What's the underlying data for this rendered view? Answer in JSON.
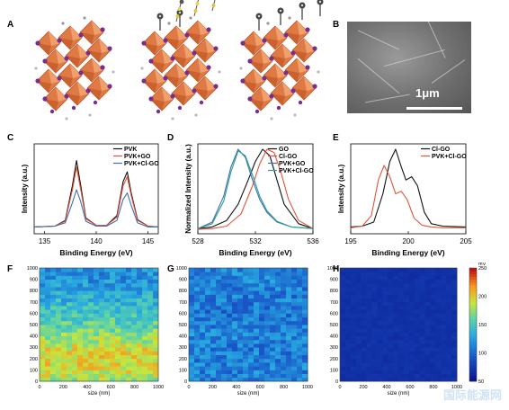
{
  "panels": {
    "a": "A",
    "b": "B",
    "c": "C",
    "d": "D",
    "e": "E",
    "f": "F",
    "g": "G",
    "h": "H"
  },
  "sem": {
    "scale_label": "1μm"
  },
  "watermark": {
    "text": "国际能源网"
  },
  "chart_data": [
    {
      "type": "line",
      "panel": "C",
      "xlabel": "Binding Energy (eV)",
      "ylabel": "Intensity (a.u.)",
      "xlim": [
        134,
        146
      ],
      "xticks": [
        135,
        140,
        145
      ],
      "series": [
        {
          "name": "PVK",
          "color": "#111111",
          "x": [
            134,
            136,
            137,
            137.7,
            138.1,
            138.5,
            139,
            140,
            141,
            142,
            142.6,
            143,
            143.4,
            144,
            145,
            146
          ],
          "values": [
            0.04,
            0.05,
            0.12,
            0.55,
            0.86,
            0.55,
            0.15,
            0.06,
            0.06,
            0.18,
            0.6,
            0.72,
            0.45,
            0.13,
            0.05,
            0.04
          ]
        },
        {
          "name": "PVK+GO",
          "color": "#e0533b",
          "x": [
            134,
            136,
            137,
            137.7,
            138.1,
            138.5,
            139,
            140,
            141,
            142,
            142.6,
            143,
            143.4,
            144,
            145,
            146
          ],
          "values": [
            0.04,
            0.05,
            0.11,
            0.5,
            0.78,
            0.5,
            0.14,
            0.06,
            0.06,
            0.16,
            0.55,
            0.66,
            0.42,
            0.12,
            0.05,
            0.04
          ]
        },
        {
          "name": "PVK+Cl-GO",
          "color": "#3b6fb0",
          "x": [
            134,
            136,
            137,
            137.7,
            138.1,
            138.5,
            139,
            140,
            141,
            142,
            142.6,
            143,
            143.4,
            144,
            145,
            146
          ],
          "values": [
            0.04,
            0.05,
            0.09,
            0.34,
            0.5,
            0.35,
            0.11,
            0.05,
            0.05,
            0.12,
            0.38,
            0.46,
            0.3,
            0.09,
            0.04,
            0.04
          ]
        }
      ]
    },
    {
      "type": "line",
      "panel": "D",
      "xlabel": "Binding Energy (eV)",
      "ylabel": "Normalized Intensity (a.u.)",
      "xlim": [
        528,
        536
      ],
      "xticks": [
        528,
        532,
        536
      ],
      "series": [
        {
          "name": "GO",
          "color": "#111111",
          "x": [
            528,
            529,
            530,
            530.8,
            531.5,
            532,
            532.5,
            533,
            533.5,
            534,
            535,
            536
          ],
          "values": [
            0.02,
            0.04,
            0.12,
            0.32,
            0.62,
            0.85,
            1.0,
            0.92,
            0.62,
            0.32,
            0.08,
            0.02
          ]
        },
        {
          "name": "Cl-GO",
          "color": "#e0533b",
          "x": [
            528,
            529,
            530,
            531,
            531.8,
            532.3,
            532.8,
            533.3,
            533.8,
            534.3,
            535,
            536
          ],
          "values": [
            0.01,
            0.02,
            0.05,
            0.2,
            0.55,
            0.82,
            1.0,
            0.96,
            0.7,
            0.38,
            0.12,
            0.02
          ]
        },
        {
          "name": "PVK+GO",
          "color": "#3b6fb0",
          "x": [
            528,
            529,
            529.8,
            530.3,
            530.8,
            531.3,
            531.8,
            532.3,
            532.8,
            533.5,
            534.5,
            536
          ],
          "values": [
            0.02,
            0.1,
            0.42,
            0.78,
            1.0,
            0.9,
            0.62,
            0.38,
            0.22,
            0.1,
            0.04,
            0.02
          ]
        },
        {
          "name": "PVK+Cl-GO",
          "color": "#2e9d94",
          "x": [
            528,
            529,
            529.8,
            530.3,
            530.8,
            531.3,
            531.8,
            532.3,
            532.8,
            533.5,
            534.5,
            536
          ],
          "values": [
            0.02,
            0.08,
            0.36,
            0.72,
            0.98,
            0.92,
            0.68,
            0.42,
            0.24,
            0.11,
            0.04,
            0.02
          ]
        }
      ]
    },
    {
      "type": "line",
      "panel": "E",
      "xlabel": "Binding Energy (eV)",
      "ylabel": "Intensity (a.u.)",
      "xlim": [
        195,
        205
      ],
      "xticks": [
        195,
        200,
        205
      ],
      "series": [
        {
          "name": "Cl-GO",
          "color": "#111111",
          "x": [
            195,
            196,
            197,
            197.8,
            198.4,
            198.9,
            199.4,
            199.8,
            200.3,
            200.8,
            201.4,
            202,
            203,
            205
          ],
          "values": [
            0.04,
            0.05,
            0.1,
            0.45,
            0.85,
            1.0,
            0.78,
            0.62,
            0.66,
            0.55,
            0.22,
            0.08,
            0.05,
            0.04
          ]
        },
        {
          "name": "PVK+Cl-GO",
          "color": "#e0533b",
          "x": [
            195,
            196,
            196.8,
            197.4,
            197.9,
            198.4,
            198.9,
            199.4,
            199.9,
            200.5,
            201.2,
            202,
            203,
            205
          ],
          "values": [
            0.03,
            0.05,
            0.18,
            0.62,
            0.8,
            0.66,
            0.45,
            0.48,
            0.38,
            0.15,
            0.06,
            0.04,
            0.03,
            0.03
          ]
        }
      ]
    },
    {
      "type": "heatmap",
      "panel": "F",
      "xlabel": "size (nm)",
      "xlim": [
        0,
        1000
      ],
      "ylim": [
        0,
        1000
      ],
      "xticks": [
        0,
        200,
        400,
        600,
        800,
        1000
      ],
      "yticks": [
        0,
        100,
        200,
        300,
        400,
        500,
        600,
        700,
        800,
        900,
        1000
      ],
      "row_levels": [
        180,
        195,
        200,
        190,
        175,
        160,
        150,
        140,
        128,
        120,
        118
      ]
    },
    {
      "type": "heatmap",
      "panel": "G",
      "xlabel": "size (nm)",
      "xlim": [
        0,
        1000
      ],
      "ylim": [
        0,
        1000
      ],
      "xticks": [
        0,
        200,
        400,
        600,
        800,
        1000
      ],
      "yticks": [
        0,
        100,
        200,
        300,
        400,
        500,
        600,
        700,
        800,
        900,
        1000
      ],
      "row_levels": [
        110,
        112,
        110,
        108,
        115,
        110,
        105,
        108,
        110,
        112,
        110
      ]
    },
    {
      "type": "heatmap",
      "panel": "H",
      "xlabel": "size (nm)",
      "xlim": [
        0,
        1000
      ],
      "ylim": [
        0,
        1000
      ],
      "xticks": [
        0,
        200,
        400,
        600,
        800,
        1000
      ],
      "yticks": [
        0,
        100,
        200,
        300,
        400,
        500,
        600,
        700,
        800,
        900,
        1000
      ],
      "row_levels": [
        68,
        68,
        68,
        68,
        68,
        68,
        68,
        68,
        68,
        68,
        68
      ],
      "colorbar": {
        "unit": "mV",
        "range": [
          50,
          250
        ],
        "ticks": [
          50,
          100,
          150,
          200,
          250
        ]
      }
    }
  ]
}
